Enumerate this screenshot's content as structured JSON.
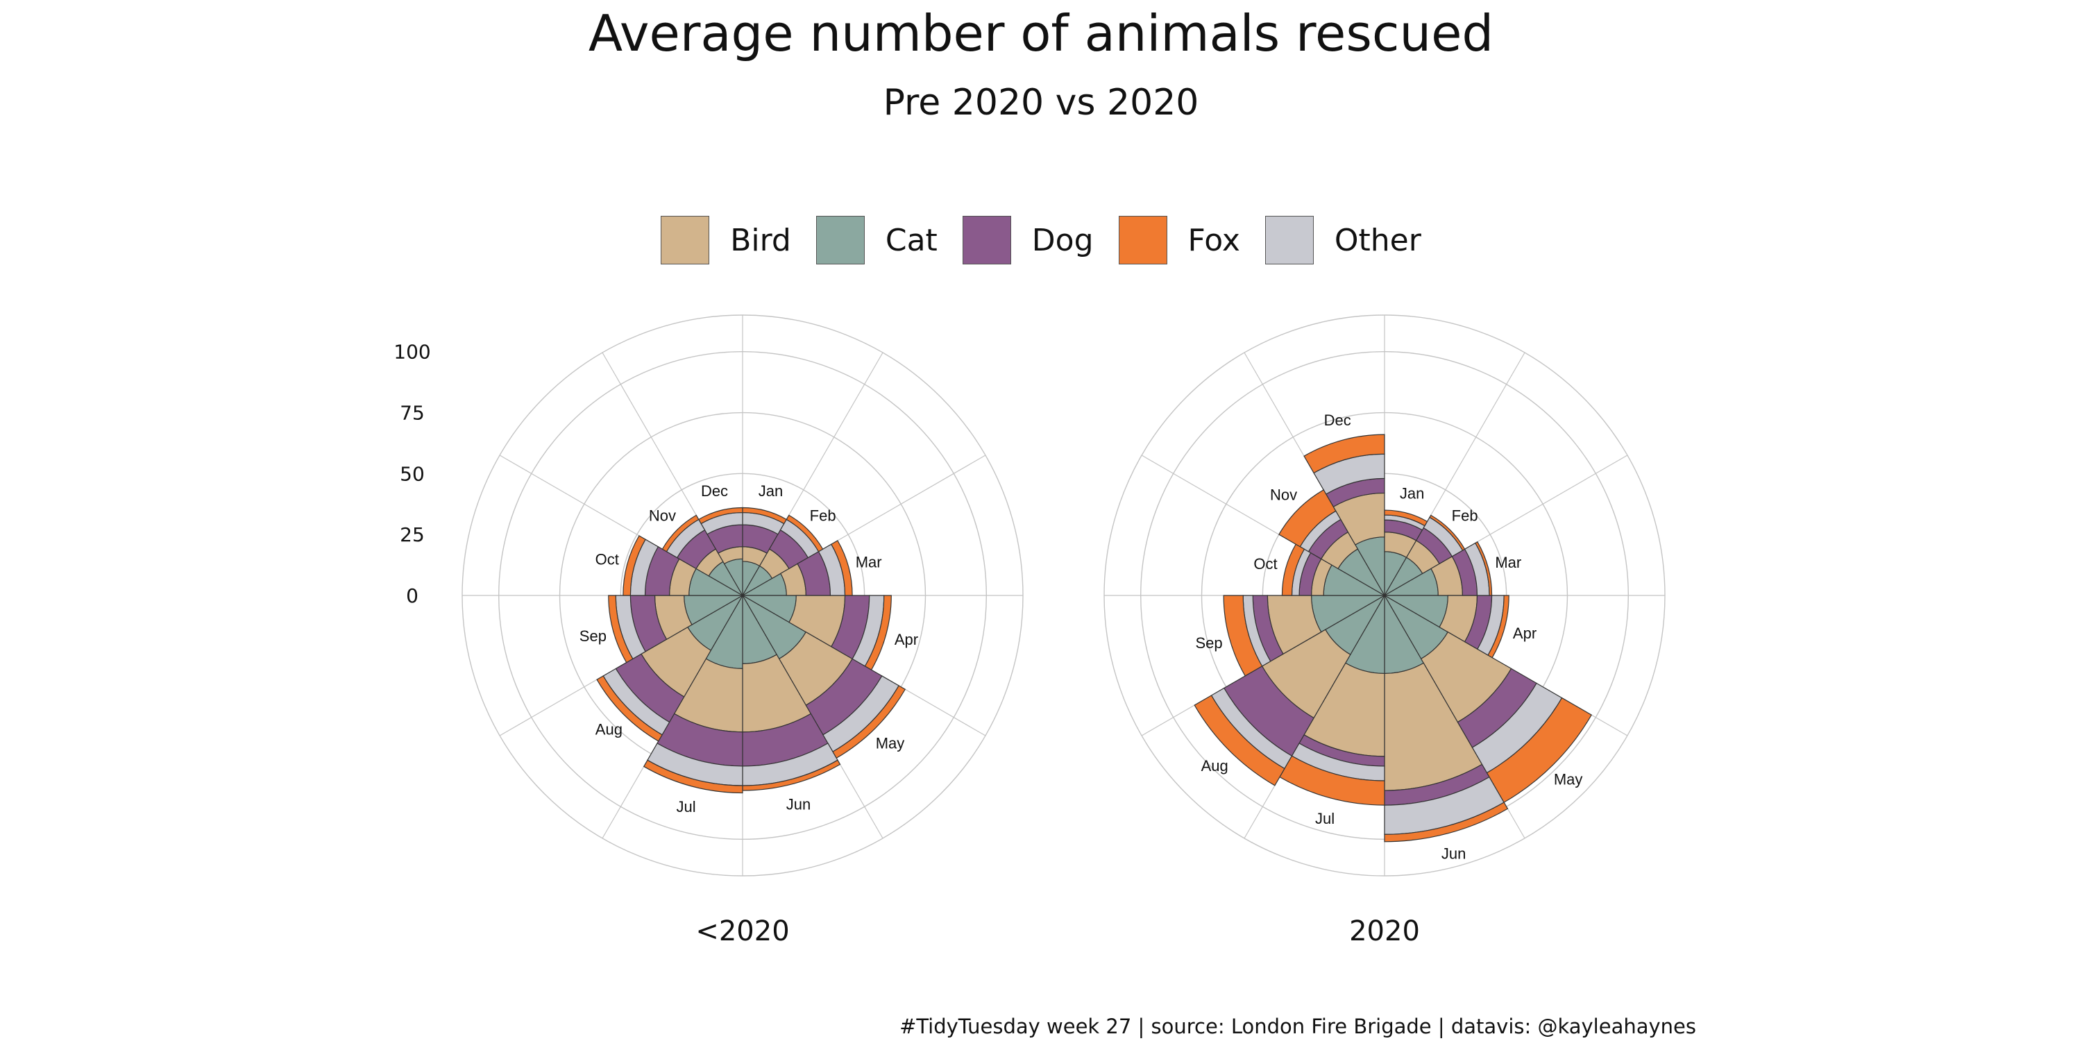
{
  "title": "Average number of animals rescued",
  "subtitle": "Pre 2020 vs 2020",
  "caption": "#TidyTuesday week 27 | source: London Fire Brigade | datavis: @kayleahaynes",
  "colors": {
    "Bird": "#d2b48c",
    "Cat": "#8ba8a0",
    "Dog": "#8a5a8c",
    "Fox": "#f07a30",
    "Other": "#c8c9d0"
  },
  "legend": [
    {
      "label": "Bird",
      "color": "#d2b48c"
    },
    {
      "label": "Cat",
      "color": "#8ba8a0"
    },
    {
      "label": "Dog",
      "color": "#8a5a8c"
    },
    {
      "label": "Fox",
      "color": "#f07a30"
    },
    {
      "label": "Other",
      "color": "#c8c9d0"
    }
  ],
  "chart_data": {
    "type": "stacked-polar-bar",
    "title": "Average number of animals rescued",
    "subtitle": "Pre 2020 vs 2020",
    "rticks": [
      0,
      25,
      50,
      75,
      100
    ],
    "rlim": [
      0,
      115
    ],
    "stack_order": [
      "Cat",
      "Bird",
      "Dog",
      "Other",
      "Fox"
    ],
    "categories": [
      "Jan",
      "Feb",
      "Mar",
      "Apr",
      "May",
      "Jun",
      "Jul",
      "Aug",
      "Sep",
      "Oct",
      "Nov",
      "Dec"
    ],
    "grid": true,
    "legend_position": "top",
    "panels": [
      {
        "label": "<2020",
        "series": [
          {
            "name": "Cat",
            "values": [
              14,
              14,
              18,
              22,
              30,
              28,
              30,
              26,
              24,
              22,
              16,
              15
            ]
          },
          {
            "name": "Bird",
            "values": [
              6,
              8,
              8,
              20,
              22,
              28,
              26,
              22,
              12,
              8,
              6,
              5
            ]
          },
          {
            "name": "Dog",
            "values": [
              9,
              9,
              10,
              10,
              14,
              14,
              14,
              12,
              10,
              10,
              9,
              9
            ]
          },
          {
            "name": "Other",
            "values": [
              5,
              5,
              6,
              6,
              8,
              8,
              8,
              6,
              6,
              6,
              5,
              5
            ]
          },
          {
            "name": "Fox",
            "values": [
              2,
              2,
              3,
              3,
              3,
              2,
              3,
              3,
              3,
              3,
              2,
              2
            ]
          }
        ]
      },
      {
        "label": "2020",
        "series": [
          {
            "name": "Cat",
            "values": [
              18,
              18,
              22,
              26,
              30,
              32,
              32,
              28,
              30,
              25,
              22,
              24
            ]
          },
          {
            "name": "Bird",
            "values": [
              8,
              8,
              10,
              12,
              30,
              48,
              34,
              30,
              18,
              5,
              8,
              18
            ]
          },
          {
            "name": "Dog",
            "values": [
              5,
              6,
              6,
              6,
              12,
              6,
              4,
              18,
              6,
              5,
              6,
              6
            ]
          },
          {
            "name": "Other",
            "values": [
              2,
              5,
              5,
              5,
              12,
              12,
              6,
              6,
              4,
              3,
              4,
              10
            ]
          },
          {
            "name": "Fox",
            "values": [
              2,
              1,
              1,
              2,
              14,
              3,
              10,
              8,
              8,
              4,
              10,
              8
            ]
          }
        ]
      }
    ]
  }
}
